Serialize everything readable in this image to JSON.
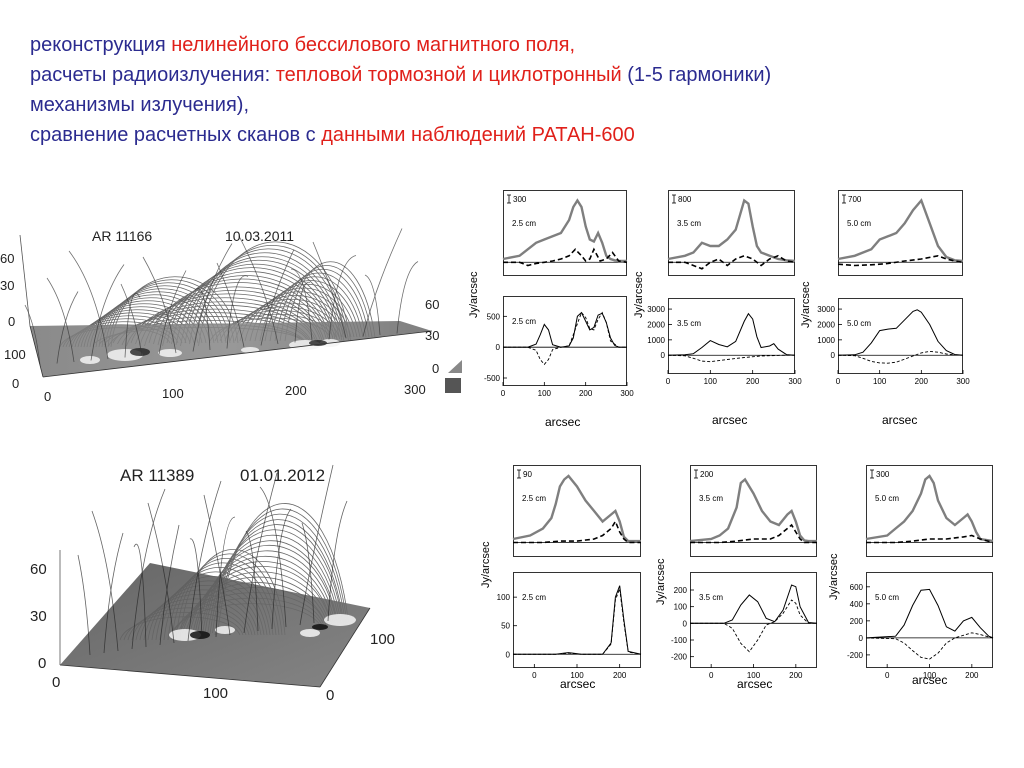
{
  "heading": {
    "line1": {
      "a": "реконструкция ",
      "b": "нелинейного бессилового магнитного поля,"
    },
    "line2": {
      "a": "расчеты радиоизлучения: ",
      "b": "тепловой тормозной и циклотронный",
      "c": " (1-5 гармоники)"
    },
    "line3": {
      "a": "механизмы  излучения),"
    },
    "line4": {
      "a": "сравнение расчетных  сканов с ",
      "b": "данными наблюдений РАТАН-600"
    }
  },
  "regions": [
    {
      "label": "AR 11166",
      "date": "10.03.2011",
      "axis_ticks": {
        "z_left": [
          "60",
          "30",
          "0"
        ],
        "y_left": [
          "100",
          "0"
        ],
        "x_bottom": [
          "0",
          "100",
          "200",
          "300"
        ],
        "z_right": [
          "60",
          "30",
          "0"
        ]
      }
    },
    {
      "label": "AR 11389",
      "date": "01.01.2012",
      "axis_ticks": {
        "z_left": [
          "60",
          "30",
          "0"
        ],
        "x_bottom": [
          "0",
          "100"
        ],
        "y_right": [
          "100",
          "0"
        ]
      }
    }
  ],
  "common": {
    "ylabel": "Jy/arcsec",
    "xlabel": "arcsec"
  },
  "chart_data": [
    {
      "type": "line",
      "region": "AR 11166",
      "row": "observed",
      "wavelength": "2.5 cm",
      "scale_bar": "300",
      "xlim": [
        0,
        300
      ],
      "series": [
        {
          "style": "thick-gray-solid",
          "x": [
            0,
            40,
            80,
            100,
            120,
            140,
            160,
            170,
            180,
            190,
            200,
            210,
            220,
            230,
            240,
            250,
            260,
            270,
            280,
            300
          ],
          "y": [
            0.05,
            0.1,
            0.3,
            0.35,
            0.4,
            0.45,
            0.65,
            0.85,
            0.95,
            0.85,
            0.55,
            0.35,
            0.32,
            0.45,
            0.3,
            0.1,
            0.05,
            0.03,
            0.02,
            0.02
          ]
        },
        {
          "style": "black-dashed",
          "x": [
            0,
            40,
            60,
            80,
            100,
            120,
            140,
            160,
            175,
            190,
            200,
            210,
            220,
            235,
            250,
            265,
            280,
            300
          ],
          "y": [
            0,
            0,
            -0.05,
            -0.02,
            0,
            0.02,
            0.05,
            0.1,
            0.2,
            0.1,
            0.02,
            0.05,
            0.2,
            0.02,
            0.05,
            0.15,
            0.02,
            0
          ]
        }
      ]
    },
    {
      "type": "line",
      "region": "AR 11166",
      "row": "observed",
      "wavelength": "3.5 cm",
      "scale_bar": "800",
      "xlim": [
        0,
        300
      ],
      "series": [
        {
          "style": "thick-gray-solid",
          "x": [
            0,
            40,
            60,
            80,
            100,
            120,
            140,
            160,
            180,
            190,
            200,
            210,
            220,
            240,
            260,
            280,
            300
          ],
          "y": [
            0.05,
            0.1,
            0.15,
            0.3,
            0.25,
            0.25,
            0.35,
            0.5,
            0.95,
            0.9,
            0.55,
            0.25,
            0.15,
            0.1,
            0.05,
            0.03,
            0.02
          ]
        },
        {
          "style": "black-dashed",
          "x": [
            0,
            40,
            60,
            80,
            100,
            120,
            140,
            160,
            180,
            200,
            220,
            240,
            260,
            280,
            300
          ],
          "y": [
            0,
            0,
            -0.05,
            -0.1,
            0,
            0.05,
            -0.05,
            0.05,
            0.1,
            0.05,
            -0.05,
            0.05,
            0.1,
            0.02,
            0
          ]
        }
      ]
    },
    {
      "type": "line",
      "region": "AR 11166",
      "row": "observed",
      "wavelength": "5.0 cm",
      "scale_bar": "700",
      "xlim": [
        0,
        300
      ],
      "series": [
        {
          "style": "thick-gray-solid",
          "x": [
            0,
            40,
            80,
            100,
            120,
            140,
            160,
            180,
            200,
            220,
            240,
            260,
            280,
            300
          ],
          "y": [
            0.05,
            0.1,
            0.2,
            0.35,
            0.4,
            0.45,
            0.6,
            0.8,
            0.95,
            0.6,
            0.25,
            0.08,
            0.03,
            0.02
          ]
        },
        {
          "style": "black-dashed",
          "x": [
            0,
            40,
            80,
            120,
            160,
            200,
            240,
            260,
            280,
            300
          ],
          "y": [
            -0.03,
            -0.05,
            -0.04,
            -0.02,
            0.02,
            0.05,
            0.1,
            0.05,
            0.02,
            0
          ]
        }
      ]
    },
    {
      "type": "line",
      "region": "AR 11166",
      "row": "model",
      "wavelength": "2.5 cm",
      "xlim": [
        0,
        300
      ],
      "ylim": [
        -500,
        700
      ],
      "yticks": [
        "-500",
        "0",
        "500"
      ],
      "xticks": [
        "0",
        "100",
        "200",
        "300"
      ],
      "series": [
        {
          "style": "black-solid",
          "x": [
            0,
            60,
            80,
            90,
            100,
            110,
            120,
            140,
            160,
            170,
            180,
            190,
            200,
            210,
            220,
            230,
            240,
            250,
            260,
            270,
            280,
            300
          ],
          "y": [
            0,
            0,
            50,
            200,
            370,
            280,
            40,
            0,
            20,
            150,
            500,
            560,
            420,
            280,
            320,
            520,
            550,
            400,
            150,
            30,
            0,
            0
          ]
        },
        {
          "style": "black-dashed",
          "x": [
            0,
            60,
            80,
            90,
            100,
            110,
            120,
            140,
            160,
            180,
            190,
            200,
            210,
            220,
            230,
            240,
            250,
            260,
            280,
            300
          ],
          "y": [
            0,
            0,
            -50,
            -200,
            -280,
            -200,
            -40,
            0,
            20,
            380,
            560,
            480,
            300,
            280,
            450,
            560,
            400,
            100,
            0,
            0
          ]
        }
      ]
    },
    {
      "type": "line",
      "region": "AR 11166",
      "row": "model",
      "wavelength": "3.5 cm",
      "xlim": [
        0,
        300
      ],
      "ylim": [
        -700,
        3200
      ],
      "yticks": [
        "0",
        "1000",
        "2000",
        "3000"
      ],
      "xticks": [
        "0",
        "100",
        "200",
        "300"
      ],
      "series": [
        {
          "style": "black-solid",
          "x": [
            0,
            40,
            60,
            80,
            100,
            120,
            140,
            160,
            180,
            190,
            200,
            210,
            220,
            240,
            250,
            260,
            280,
            300
          ],
          "y": [
            0,
            30,
            100,
            500,
            950,
            700,
            550,
            900,
            2200,
            2700,
            2350,
            1200,
            500,
            600,
            750,
            400,
            40,
            0
          ]
        },
        {
          "style": "black-dashed",
          "x": [
            0,
            40,
            60,
            80,
            100,
            140,
            180,
            220,
            260,
            280,
            300
          ],
          "y": [
            0,
            -40,
            -200,
            -380,
            -420,
            -280,
            -150,
            -50,
            -10,
            0,
            0
          ]
        }
      ]
    },
    {
      "type": "line",
      "region": "AR 11166",
      "row": "model",
      "wavelength": "5.0 cm",
      "xlim": [
        0,
        300
      ],
      "ylim": [
        -700,
        3200
      ],
      "yticks": [
        "0",
        "1000",
        "2000",
        "3000"
      ],
      "xticks": [
        "0",
        "100",
        "200",
        "300"
      ],
      "series": [
        {
          "style": "black-solid",
          "x": [
            0,
            40,
            60,
            80,
            100,
            120,
            140,
            160,
            180,
            190,
            200,
            220,
            240,
            260,
            280,
            300
          ],
          "y": [
            0,
            30,
            200,
            800,
            1600,
            1700,
            1750,
            2300,
            2850,
            2950,
            2800,
            2000,
            900,
            300,
            50,
            0
          ]
        },
        {
          "style": "black-dashed",
          "x": [
            0,
            40,
            60,
            80,
            100,
            120,
            140,
            160,
            180,
            200,
            220,
            240,
            260,
            280,
            300
          ],
          "y": [
            0,
            -30,
            -200,
            -400,
            -500,
            -520,
            -450,
            -250,
            -50,
            150,
            250,
            200,
            80,
            20,
            0
          ]
        }
      ]
    },
    {
      "type": "line",
      "region": "AR 11389",
      "row": "observed",
      "wavelength": "2.5 cm",
      "scale_bar": "90",
      "xlim": [
        -50,
        250
      ],
      "series": [
        {
          "style": "thick-gray-solid",
          "x": [
            -50,
            -10,
            20,
            40,
            50,
            60,
            70,
            80,
            100,
            120,
            140,
            160,
            180,
            190,
            200,
            210,
            220,
            250
          ],
          "y": [
            0.05,
            0.1,
            0.2,
            0.35,
            0.55,
            0.8,
            0.9,
            0.95,
            0.8,
            0.6,
            0.45,
            0.3,
            0.4,
            0.45,
            0.3,
            0.08,
            0.02,
            0.02
          ]
        },
        {
          "style": "black-dashed",
          "x": [
            -50,
            20,
            60,
            100,
            140,
            160,
            180,
            190,
            200,
            210,
            220,
            250
          ],
          "y": [
            0,
            0,
            0.02,
            0.02,
            0.05,
            0.1,
            0.2,
            0.3,
            0.15,
            0.05,
            0,
            0
          ]
        }
      ]
    },
    {
      "type": "line",
      "region": "AR 11389",
      "row": "observed",
      "wavelength": "3.5 cm",
      "scale_bar": "200",
      "xlim": [
        -50,
        250
      ],
      "series": [
        {
          "style": "thick-gray-solid",
          "x": [
            -50,
            0,
            20,
            40,
            60,
            70,
            80,
            100,
            120,
            140,
            160,
            180,
            190,
            200,
            210,
            220,
            230,
            250
          ],
          "y": [
            0.02,
            0.05,
            0.1,
            0.2,
            0.5,
            0.85,
            0.9,
            0.7,
            0.45,
            0.3,
            0.25,
            0.4,
            0.45,
            0.3,
            0.1,
            0.03,
            0.02,
            0.02
          ]
        },
        {
          "style": "black-dashed",
          "x": [
            -50,
            20,
            60,
            100,
            140,
            160,
            180,
            190,
            200,
            210,
            220,
            250
          ],
          "y": [
            0,
            0,
            0.02,
            0.05,
            0.05,
            0.1,
            0.2,
            0.25,
            0.15,
            0.05,
            0,
            0
          ]
        }
      ]
    },
    {
      "type": "line",
      "region": "AR 11389",
      "row": "observed",
      "wavelength": "5.0 cm",
      "scale_bar": "300",
      "xlim": [
        -50,
        250
      ],
      "series": [
        {
          "style": "thick-gray-solid",
          "x": [
            -50,
            0,
            20,
            40,
            60,
            80,
            90,
            100,
            110,
            120,
            140,
            160,
            180,
            190,
            200,
            210,
            220,
            250
          ],
          "y": [
            0.05,
            0.1,
            0.2,
            0.3,
            0.45,
            0.7,
            0.9,
            0.95,
            0.85,
            0.6,
            0.35,
            0.25,
            0.35,
            0.4,
            0.3,
            0.15,
            0.05,
            0.02
          ]
        },
        {
          "style": "black-dashed",
          "x": [
            -50,
            20,
            60,
            100,
            140,
            180,
            200,
            220,
            250
          ],
          "y": [
            0,
            0,
            0.02,
            0.05,
            0.05,
            0.08,
            0.1,
            0.05,
            0
          ]
        }
      ]
    },
    {
      "type": "line",
      "region": "AR 11389",
      "row": "model",
      "wavelength": "2.5 cm",
      "xlim": [
        -50,
        250
      ],
      "ylim": [
        -10,
        130
      ],
      "yticks": [
        "0",
        "50",
        "100"
      ],
      "xticks": [
        "0",
        "100",
        "200"
      ],
      "series": [
        {
          "style": "black-solid",
          "x": [
            -50,
            50,
            70,
            80,
            90,
            110,
            160,
            180,
            190,
            200,
            210,
            220,
            250
          ],
          "y": [
            0,
            0,
            2,
            3,
            2,
            0,
            0,
            20,
            100,
            120,
            60,
            5,
            0
          ]
        },
        {
          "style": "black-dashed",
          "x": [
            -50,
            50,
            70,
            80,
            90,
            110,
            160,
            180,
            190,
            200,
            210,
            220,
            250
          ],
          "y": [
            0,
            0,
            1,
            2,
            1,
            0,
            0,
            18,
            95,
            115,
            55,
            4,
            0
          ]
        }
      ]
    },
    {
      "type": "line",
      "region": "AR 11389",
      "row": "model",
      "wavelength": "3.5 cm",
      "xlim": [
        -50,
        250
      ],
      "ylim": [
        -220,
        260
      ],
      "yticks": [
        "-200",
        "-100",
        "0",
        "100",
        "200"
      ],
      "xticks": [
        "0",
        "100",
        "200"
      ],
      "series": [
        {
          "style": "black-solid",
          "x": [
            -50,
            30,
            50,
            70,
            90,
            110,
            130,
            150,
            170,
            190,
            200,
            210,
            230,
            250
          ],
          "y": [
            0,
            0,
            20,
            110,
            170,
            130,
            30,
            10,
            80,
            230,
            220,
            100,
            5,
            0
          ]
        },
        {
          "style": "black-dashed",
          "x": [
            -50,
            30,
            50,
            70,
            90,
            110,
            130,
            150,
            170,
            190,
            200,
            210,
            230,
            250
          ],
          "y": [
            0,
            0,
            -30,
            -120,
            -170,
            -100,
            -10,
            10,
            60,
            140,
            120,
            50,
            0,
            0
          ]
        }
      ]
    },
    {
      "type": "line",
      "region": "AR 11389",
      "row": "model",
      "wavelength": "5.0 cm",
      "xlim": [
        -50,
        250
      ],
      "ylim": [
        -260,
        680
      ],
      "yticks": [
        "-200",
        "0",
        "200",
        "400",
        "600"
      ],
      "xticks": [
        "0",
        "100",
        "200"
      ],
      "series": [
        {
          "style": "black-solid",
          "x": [
            -50,
            20,
            40,
            60,
            80,
            100,
            120,
            140,
            160,
            180,
            200,
            220,
            240,
            250
          ],
          "y": [
            0,
            20,
            150,
            380,
            560,
            570,
            380,
            130,
            80,
            200,
            240,
            120,
            20,
            0
          ]
        },
        {
          "style": "black-dashed",
          "x": [
            -50,
            20,
            40,
            60,
            80,
            100,
            120,
            140,
            160,
            180,
            200,
            220,
            240,
            250
          ],
          "y": [
            0,
            -10,
            -60,
            -150,
            -230,
            -250,
            -180,
            -60,
            0,
            30,
            60,
            40,
            10,
            0
          ]
        }
      ]
    }
  ]
}
